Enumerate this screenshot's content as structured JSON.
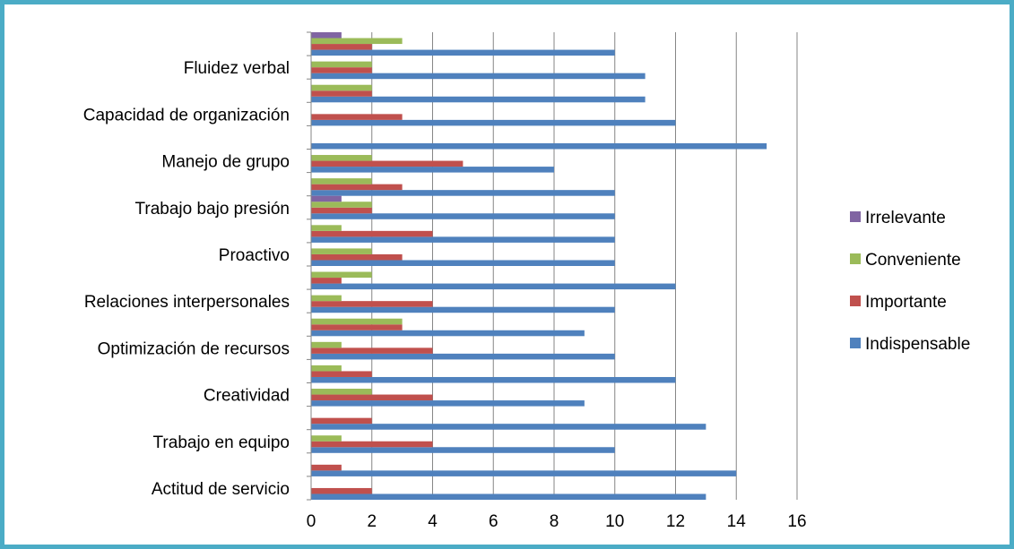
{
  "chart_data": {
    "type": "bar",
    "orientation": "horizontal",
    "categories": [
      "Actitud de servicio",
      "",
      "Trabajo en equipo",
      "",
      "Creatividad",
      "",
      "Optimización de recursos",
      "",
      "Relaciones interpersonales",
      "",
      "Proactivo",
      "",
      "Trabajo bajo presión",
      "",
      "Manejo de grupo",
      "",
      "Capacidad de organización",
      "",
      "Fluidez verbal",
      ""
    ],
    "series": [
      {
        "name": "Indispensable",
        "color": "#4f81bd",
        "values": [
          13,
          14,
          10,
          13,
          9,
          12,
          10,
          9,
          10,
          12,
          10,
          10,
          10,
          10,
          8,
          15,
          12,
          11,
          11,
          10
        ]
      },
      {
        "name": "Importante",
        "color": "#c0504d",
        "values": [
          2,
          1,
          4,
          2,
          4,
          2,
          4,
          3,
          4,
          1,
          3,
          4,
          2,
          3,
          5,
          0,
          3,
          2,
          2,
          2
        ]
      },
      {
        "name": "Conveniente",
        "color": "#9bbb59",
        "values": [
          0,
          0,
          1,
          0,
          2,
          1,
          1,
          3,
          1,
          2,
          2,
          1,
          2,
          2,
          2,
          0,
          0,
          2,
          2,
          3
        ]
      },
      {
        "name": "Irrelevante",
        "color": "#8064a2",
        "values": [
          0,
          0,
          0,
          0,
          0,
          0,
          0,
          0,
          0,
          0,
          0,
          0,
          1,
          0,
          0,
          0,
          0,
          0,
          0,
          1
        ]
      }
    ],
    "xlim": [
      0,
      16
    ],
    "xticks": [
      "0",
      "2",
      "4",
      "6",
      "8",
      "10",
      "12",
      "14",
      "16"
    ],
    "legend_order": [
      "Irrelevante",
      "Conveniente",
      "Importante",
      "Indispensable"
    ],
    "legend_position": "right",
    "grid": "vertical major gridlines"
  }
}
